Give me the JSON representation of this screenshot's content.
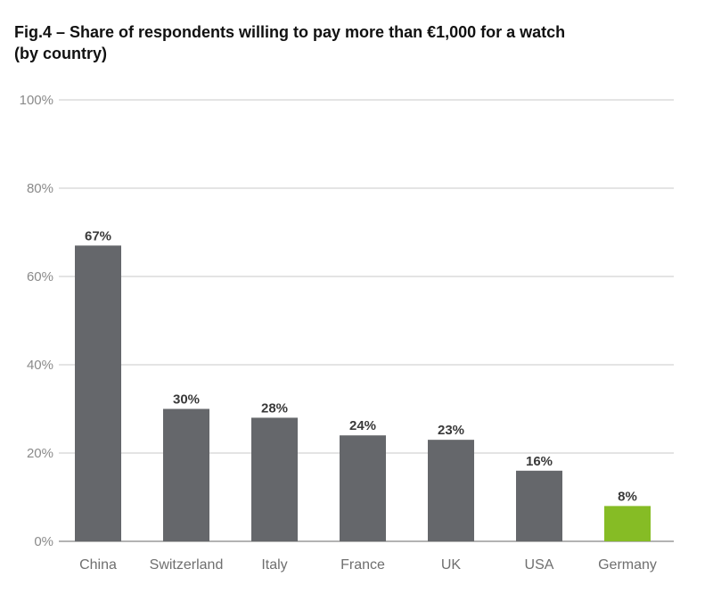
{
  "chart_data": {
    "type": "bar",
    "title_line1": "Fig.4 – Share of respondents willing to pay more than €1,000 for a watch",
    "title_line2": "(by country)",
    "categories": [
      "China",
      "Switzerland",
      "Italy",
      "France",
      "UK",
      "USA",
      "Germany"
    ],
    "values": [
      67,
      30,
      28,
      24,
      23,
      16,
      8
    ],
    "data_labels": [
      "67%",
      "30%",
      "28%",
      "24%",
      "23%",
      "16%",
      "8%"
    ],
    "y_ticks": [
      0,
      20,
      40,
      60,
      80,
      100
    ],
    "y_tick_labels": [
      "0%",
      "20%",
      "40%",
      "60%",
      "80%",
      "100%"
    ],
    "ylim": [
      0,
      100
    ],
    "grid": true,
    "colors": {
      "bar": "#65676b",
      "highlight": "#86bc25",
      "grid": "#c8c8c8",
      "axis": "#9a9a9a"
    },
    "highlight_category": "Germany"
  }
}
